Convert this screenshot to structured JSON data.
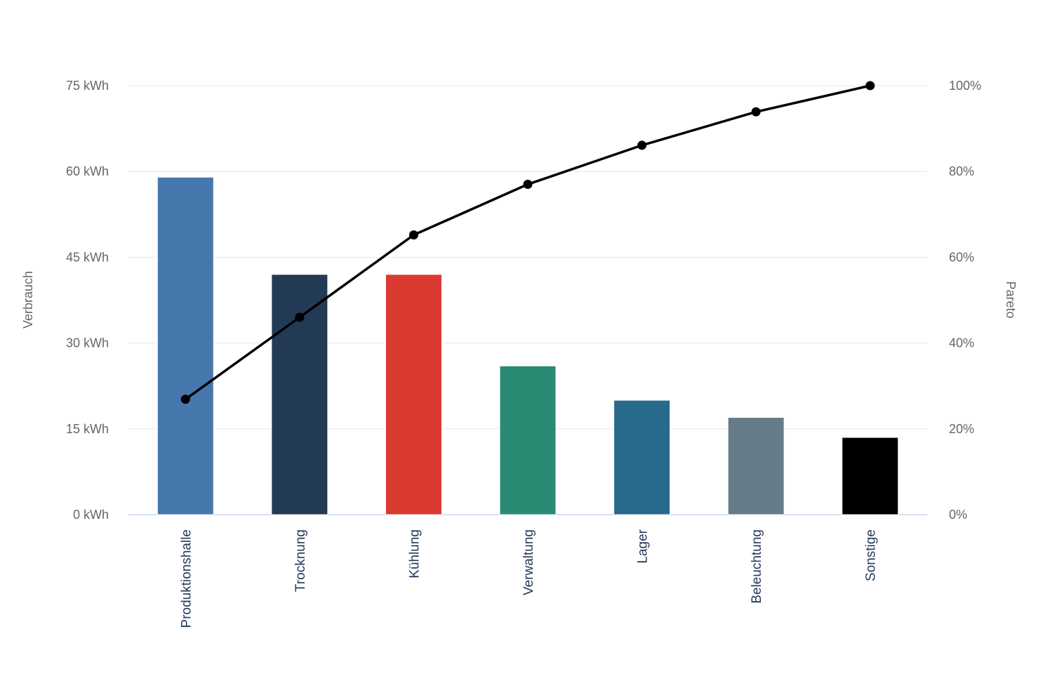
{
  "chart_data": {
    "type": "bar",
    "subtype": "pareto",
    "title": "",
    "categories": [
      "Produktionshalle",
      "Trocknung",
      "Kühlung",
      "Verwaltung",
      "Lager",
      "Beleuchtung",
      "Sonstige"
    ],
    "series": [
      {
        "name": "Verbrauch",
        "type": "column",
        "unit": "kWh",
        "values": [
          59,
          42,
          42,
          26,
          20,
          17,
          13.5
        ],
        "colors": [
          "#4678ae",
          "#233a55",
          "#d93a32",
          "#2a8a74",
          "#276a8c",
          "#667d89",
          "#000000"
        ]
      },
      {
        "name": "Pareto",
        "type": "line",
        "unit": "%",
        "values": [
          26.9,
          46.0,
          65.2,
          77.0,
          86.1,
          93.9,
          100
        ],
        "color": "#000000"
      }
    ],
    "left_axis": {
      "title": "Verbrauch",
      "min": 0,
      "max": 75,
      "tick_step": 15,
      "tick_labels": [
        "0 kWh",
        "15 kWh",
        "30 kWh",
        "45 kWh",
        "60 kWh",
        "75 kWh"
      ]
    },
    "right_axis": {
      "title": "Pareto",
      "min": 0,
      "max": 100,
      "tick_step": 20,
      "tick_labels": [
        "0%",
        "20%",
        "40%",
        "60%",
        "80%",
        "100%"
      ]
    },
    "grid": true,
    "legend_position": "none"
  },
  "style": {
    "background": "#ffffff",
    "grid_color": "#e6e6e6",
    "axis_line_color": "#ccd6eb",
    "tick_label_color": "#666666",
    "axis_title_color": "#666666",
    "category_label_color": "#24395b",
    "line_color": "#000000",
    "marker_color": "#000000",
    "bar_border_color": "#ffffff"
  }
}
